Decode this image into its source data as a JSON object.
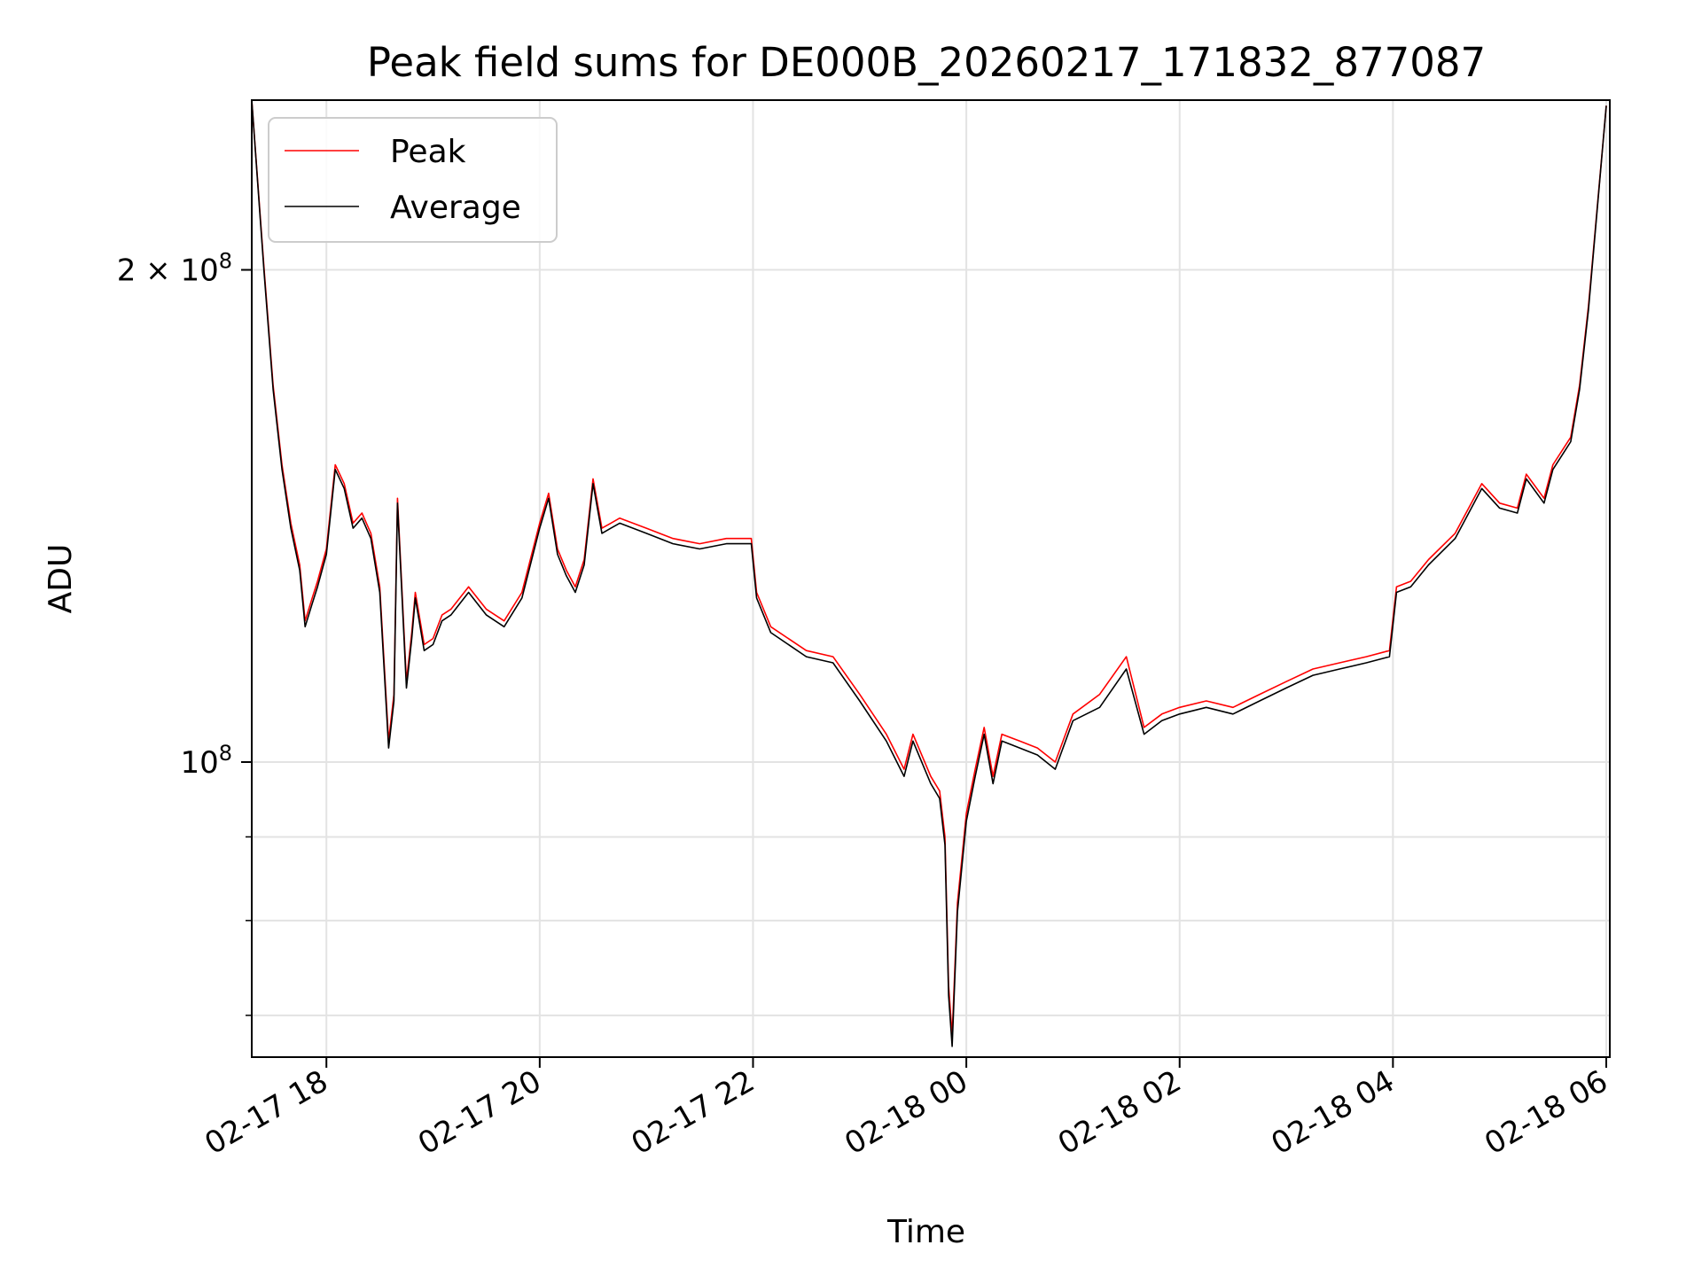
{
  "chart_data": {
    "type": "line",
    "title": "Peak field sums for DE000B_20260217_171832_877087",
    "xlabel": "Time",
    "ylabel": "ADU",
    "x_scale": "time",
    "y_scale": "log",
    "xlim": [
      "2026-02-17 17:18",
      "2026-02-18 06:02"
    ],
    "ylim": [
      66000000,
      254000000
    ],
    "x_ticks": [
      "02-17 18",
      "02-17 20",
      "02-17 22",
      "02-18 00",
      "02-18 02",
      "02-18 04",
      "02-18 06"
    ],
    "x_tick_values": [
      "2026-02-17 18:00",
      "2026-02-17 20:00",
      "2026-02-17 22:00",
      "2026-02-18 00:00",
      "2026-02-18 02:00",
      "2026-02-18 04:00",
      "2026-02-18 06:00"
    ],
    "y_major_ticks": [
      {
        "label_base": "10",
        "label_exp": "8",
        "value": 100000000
      },
      {
        "label_base": "2 × 10",
        "label_exp": "8",
        "value": 200000000
      }
    ],
    "y_minor_ticks": [
      70000000,
      80000000,
      90000000
    ],
    "grid": true,
    "legend_position": "upper-left",
    "series": [
      {
        "name": "Peak",
        "color": "#ff0000",
        "x": [
          "2026-02-17 17:18",
          "2026-02-17 17:25",
          "2026-02-17 17:30",
          "2026-02-17 17:35",
          "2026-02-17 17:40",
          "2026-02-17 17:45",
          "2026-02-17 17:48",
          "2026-02-17 17:52",
          "2026-02-17 17:55",
          "2026-02-17 18:00",
          "2026-02-17 18:05",
          "2026-02-17 18:10",
          "2026-02-17 18:15",
          "2026-02-17 18:20",
          "2026-02-17 18:25",
          "2026-02-17 18:30",
          "2026-02-17 18:35",
          "2026-02-17 18:38",
          "2026-02-17 18:40",
          "2026-02-17 18:45",
          "2026-02-17 18:48",
          "2026-02-17 18:50",
          "2026-02-17 18:55",
          "2026-02-17 19:00",
          "2026-02-17 19:05",
          "2026-02-17 19:10",
          "2026-02-17 19:20",
          "2026-02-17 19:30",
          "2026-02-17 19:40",
          "2026-02-17 19:50",
          "2026-02-17 20:00",
          "2026-02-17 20:05",
          "2026-02-17 20:10",
          "2026-02-17 20:15",
          "2026-02-17 20:20",
          "2026-02-17 20:25",
          "2026-02-17 20:30",
          "2026-02-17 20:35",
          "2026-02-17 20:40",
          "2026-02-17 20:45",
          "2026-02-17 21:00",
          "2026-02-17 21:15",
          "2026-02-17 21:30",
          "2026-02-17 21:45",
          "2026-02-17 21:59",
          "2026-02-17 22:02",
          "2026-02-17 22:10",
          "2026-02-17 22:30",
          "2026-02-17 22:45",
          "2026-02-17 23:00",
          "2026-02-17 23:15",
          "2026-02-17 23:25",
          "2026-02-17 23:30",
          "2026-02-17 23:40",
          "2026-02-17 23:45",
          "2026-02-17 23:48",
          "2026-02-17 23:50",
          "2026-02-17 23:52",
          "2026-02-17 23:55",
          "2026-02-18 00:00",
          "2026-02-18 00:05",
          "2026-02-18 00:10",
          "2026-02-18 00:15",
          "2026-02-18 00:20",
          "2026-02-18 00:30",
          "2026-02-18 00:40",
          "2026-02-18 00:50",
          "2026-02-18 01:00",
          "2026-02-18 01:15",
          "2026-02-18 01:30",
          "2026-02-18 01:40",
          "2026-02-18 01:50",
          "2026-02-18 02:00",
          "2026-02-18 02:15",
          "2026-02-18 02:30",
          "2026-02-18 02:45",
          "2026-02-18 03:00",
          "2026-02-18 03:15",
          "2026-02-18 03:30",
          "2026-02-18 03:45",
          "2026-02-18 03:58",
          "2026-02-18 04:02",
          "2026-02-18 04:10",
          "2026-02-18 04:20",
          "2026-02-18 04:35",
          "2026-02-18 04:50",
          "2026-02-18 05:00",
          "2026-02-18 05:10",
          "2026-02-18 05:15",
          "2026-02-18 05:25",
          "2026-02-18 05:30",
          "2026-02-18 05:40",
          "2026-02-18 05:45",
          "2026-02-18 05:50",
          "2026-02-18 06:00"
        ],
        "values": [
          254000000,
          200000000,
          170000000,
          152000000,
          140000000,
          132000000,
          122000000,
          126000000,
          129000000,
          135000000,
          152000000,
          148000000,
          140000000,
          142000000,
          138000000,
          128000000,
          103000000,
          110000000,
          145000000,
          112000000,
          120000000,
          127000000,
          118000000,
          119000000,
          123000000,
          124000000,
          128000000,
          124000000,
          122000000,
          127000000,
          140000000,
          146000000,
          135000000,
          131000000,
          128000000,
          133000000,
          149000000,
          139000000,
          140000000,
          141000000,
          139000000,
          137000000,
          136000000,
          137000000,
          137000000,
          127000000,
          121000000,
          117000000,
          116000000,
          110000000,
          104000000,
          99000000,
          104000000,
          98000000,
          96000000,
          90000000,
          73000000,
          68000000,
          82000000,
          93000000,
          99000000,
          105000000,
          98000000,
          104000000,
          103000000,
          102000000,
          100000000,
          107000000,
          110000000,
          116000000,
          105000000,
          107000000,
          108000000,
          109000000,
          108000000,
          110000000,
          112000000,
          114000000,
          115000000,
          116000000,
          117000000,
          128000000,
          129000000,
          133000000,
          138000000,
          148000000,
          144000000,
          143000000,
          150000000,
          145000000,
          152000000,
          158000000,
          170000000,
          190000000,
          252000000
        ]
      },
      {
        "name": "Average",
        "color": "#000000",
        "x": [
          "2026-02-17 17:18",
          "2026-02-17 17:25",
          "2026-02-17 17:30",
          "2026-02-17 17:35",
          "2026-02-17 17:40",
          "2026-02-17 17:45",
          "2026-02-17 17:48",
          "2026-02-17 17:52",
          "2026-02-17 17:55",
          "2026-02-17 18:00",
          "2026-02-17 18:05",
          "2026-02-17 18:10",
          "2026-02-17 18:15",
          "2026-02-17 18:20",
          "2026-02-17 18:25",
          "2026-02-17 18:30",
          "2026-02-17 18:35",
          "2026-02-17 18:38",
          "2026-02-17 18:40",
          "2026-02-17 18:45",
          "2026-02-17 18:48",
          "2026-02-17 18:50",
          "2026-02-17 18:55",
          "2026-02-17 19:00",
          "2026-02-17 19:05",
          "2026-02-17 19:10",
          "2026-02-17 19:20",
          "2026-02-17 19:30",
          "2026-02-17 19:40",
          "2026-02-17 19:50",
          "2026-02-17 20:00",
          "2026-02-17 20:05",
          "2026-02-17 20:10",
          "2026-02-17 20:15",
          "2026-02-17 20:20",
          "2026-02-17 20:25",
          "2026-02-17 20:30",
          "2026-02-17 20:35",
          "2026-02-17 20:40",
          "2026-02-17 20:45",
          "2026-02-17 21:00",
          "2026-02-17 21:15",
          "2026-02-17 21:30",
          "2026-02-17 21:45",
          "2026-02-17 21:59",
          "2026-02-17 22:02",
          "2026-02-17 22:10",
          "2026-02-17 22:30",
          "2026-02-17 22:45",
          "2026-02-17 23:00",
          "2026-02-17 23:15",
          "2026-02-17 23:25",
          "2026-02-17 23:30",
          "2026-02-17 23:40",
          "2026-02-17 23:45",
          "2026-02-17 23:48",
          "2026-02-17 23:50",
          "2026-02-17 23:52",
          "2026-02-17 23:55",
          "2026-02-18 00:00",
          "2026-02-18 00:05",
          "2026-02-18 00:10",
          "2026-02-18 00:15",
          "2026-02-18 00:20",
          "2026-02-18 00:30",
          "2026-02-18 00:40",
          "2026-02-18 00:50",
          "2026-02-18 01:00",
          "2026-02-18 01:15",
          "2026-02-18 01:30",
          "2026-02-18 01:40",
          "2026-02-18 01:50",
          "2026-02-18 02:00",
          "2026-02-18 02:15",
          "2026-02-18 02:30",
          "2026-02-18 02:45",
          "2026-02-18 03:00",
          "2026-02-18 03:15",
          "2026-02-18 03:30",
          "2026-02-18 03:45",
          "2026-02-18 03:58",
          "2026-02-18 04:02",
          "2026-02-18 04:10",
          "2026-02-18 04:20",
          "2026-02-18 04:35",
          "2026-02-18 04:50",
          "2026-02-18 05:00",
          "2026-02-18 05:10",
          "2026-02-18 05:15",
          "2026-02-18 05:25",
          "2026-02-18 05:30",
          "2026-02-18 05:40",
          "2026-02-18 05:45",
          "2026-02-18 05:50",
          "2026-02-18 06:00"
        ],
        "values": [
          254000000,
          199000000,
          169000000,
          151000000,
          139000000,
          131000000,
          121000000,
          125000000,
          128000000,
          134000000,
          151000000,
          147000000,
          139000000,
          141000000,
          137000000,
          127000000,
          102000000,
          109000000,
          144000000,
          111000000,
          119000000,
          126000000,
          117000000,
          118000000,
          122000000,
          123000000,
          127000000,
          123000000,
          121000000,
          126000000,
          139000000,
          145000000,
          134000000,
          130000000,
          127000000,
          132000000,
          148000000,
          138000000,
          139000000,
          140000000,
          138000000,
          136000000,
          135000000,
          136000000,
          136000000,
          126000000,
          120000000,
          116000000,
          115000000,
          109000000,
          103000000,
          98000000,
          103000000,
          97000000,
          95000000,
          89000000,
          72000000,
          67000000,
          81000000,
          92000000,
          98000000,
          104000000,
          97000000,
          103000000,
          102000000,
          101000000,
          99000000,
          106000000,
          108000000,
          114000000,
          104000000,
          106000000,
          107000000,
          108000000,
          107000000,
          109000000,
          111000000,
          113000000,
          114000000,
          115000000,
          116000000,
          127000000,
          128000000,
          132000000,
          137000000,
          147000000,
          143000000,
          142000000,
          149000000,
          144000000,
          151000000,
          157000000,
          169000000,
          189000000,
          252000000
        ]
      }
    ]
  }
}
